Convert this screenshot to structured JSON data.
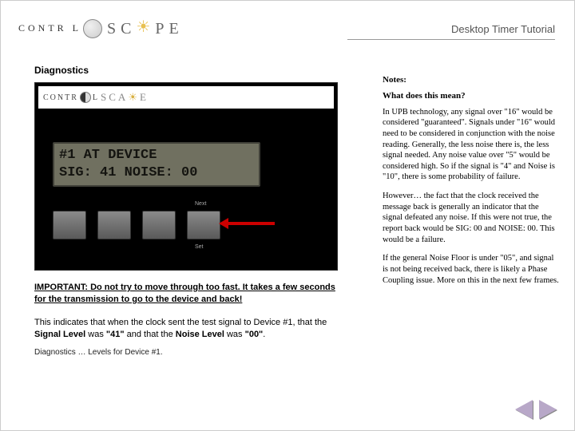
{
  "header": {
    "title": "Desktop Timer Tutorial",
    "logo_control": "CONTR  L",
    "logo_scape": "SC   PE"
  },
  "main": {
    "section_title": "Diagnostics",
    "lcd_line1": "#1 AT DEVICE",
    "lcd_line2": "SIG: 41 NOISE: 00",
    "btn_labels": {
      "next": "Next",
      "set": "Set"
    },
    "important": "IMPORTANT: Do not try to move through too fast. It takes a few seconds for the transmission to go to the device and back!",
    "body_html": "This indicates that when the clock sent the test signal to Device #1, that the <b>Signal Level</b> was <b>\"41\"</b> and that the <b>Noise Level</b> was <b>\"00\"</b>.",
    "caption": "Diagnostics … Levels for Device #1."
  },
  "notes": {
    "heading": "Notes:",
    "subheading": "What does this mean?",
    "p1": "In UPB technology, any signal over \"16\" would be considered \"guaranteed\". Signals under \"16\" would need to be considered in conjunction with the noise reading. Generally, the less noise there is, the less signal needed. Any noise value over \"5\" would be considered high. So if the signal is \"4\" and Noise is \"10\", there is some probability of failure.",
    "p2": "However… the fact that the clock received the message back is generally an indicator that the signal defeated any noise. If this were not true, the report back would be SIG: 00 and NOISE: 00. This would be a failure.",
    "p3": "If the general Noise Floor is under \"05\", and signal is not being received back, there is likely a Phase Coupling issue. More on this in the next few frames."
  },
  "colors": {
    "lcd_bg": "#707060",
    "arrow_red": "#cc0000",
    "nav_purple": "#b8a8c8"
  }
}
